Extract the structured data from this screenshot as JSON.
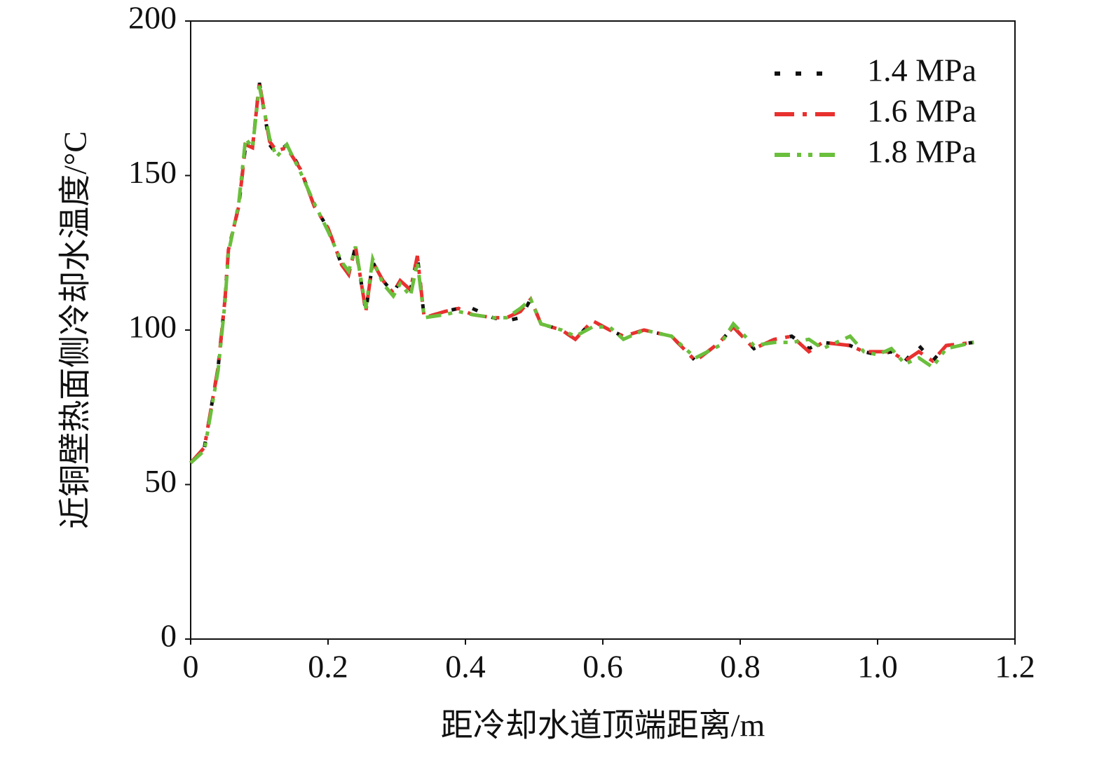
{
  "chart_data": {
    "type": "line",
    "xlabel": "距冷却水道顶端距离/m",
    "ylabel": "近铜壁热面侧冷却水温度/°C",
    "x": [
      0,
      0.02,
      0.04,
      0.05,
      0.055,
      0.07,
      0.08,
      0.09,
      0.1,
      0.115,
      0.125,
      0.14,
      0.16,
      0.18,
      0.2,
      0.22,
      0.23,
      0.24,
      0.255,
      0.265,
      0.28,
      0.295,
      0.305,
      0.32,
      0.33,
      0.34,
      0.37,
      0.39,
      0.41,
      0.44,
      0.46,
      0.48,
      0.495,
      0.51,
      0.54,
      0.56,
      0.585,
      0.61,
      0.63,
      0.66,
      0.7,
      0.735,
      0.77,
      0.79,
      0.82,
      0.85,
      0.875,
      0.9,
      0.92,
      0.96,
      0.98,
      1.0,
      1.02,
      1.04,
      1.06,
      1.08,
      1.1,
      1.14
    ],
    "series": [
      {
        "name": "1.4 MPa",
        "color": "#111111",
        "values": [
          57,
          62,
          88,
          110,
          126,
          140,
          160,
          159,
          180,
          160,
          157,
          160,
          152,
          140,
          133,
          121,
          118,
          127,
          106,
          122,
          116,
          112,
          116,
          113,
          124,
          104,
          106,
          107,
          107,
          104,
          103,
          104,
          110,
          102,
          100,
          97,
          103,
          100,
          98,
          100,
          98,
          90,
          96,
          101,
          94,
          97,
          98,
          94,
          96,
          95,
          93,
          92,
          93,
          90,
          95,
          90,
          95,
          96
        ]
      },
      {
        "name": "1.6 MPa",
        "color": "#e8312f",
        "values": [
          57,
          62,
          88,
          110,
          126,
          140,
          160,
          159,
          180,
          161,
          158,
          159,
          152,
          140,
          133,
          121,
          118,
          127,
          106,
          122,
          116,
          112,
          116,
          113,
          124,
          104,
          106,
          107,
          105,
          104,
          104,
          106,
          110,
          102,
          100,
          97,
          103,
          100,
          98,
          100,
          98,
          90,
          96,
          101,
          94,
          97,
          98,
          93,
          96,
          95,
          93,
          93,
          93,
          90,
          93,
          90,
          95,
          96
        ]
      },
      {
        "name": "1.8 MPa",
        "color": "#6abf3c",
        "values": [
          57,
          61,
          87,
          109,
          125,
          141,
          162,
          159,
          179,
          162,
          156,
          160,
          151,
          141,
          132,
          122,
          119,
          127,
          107,
          123,
          115,
          111,
          115,
          111,
          122,
          104,
          105,
          106,
          105,
          104,
          104,
          107,
          110,
          102,
          100,
          98,
          101,
          101,
          97,
          100,
          98,
          91,
          95,
          102,
          95,
          96,
          96,
          97,
          94,
          98,
          93,
          92,
          94,
          89,
          91,
          88,
          94,
          96
        ]
      }
    ],
    "xlim": [
      0,
      1.2
    ],
    "xticks": [
      0,
      0.2,
      0.4,
      0.6,
      0.8,
      {
        "value": 1,
        "label": "1.0"
      },
      1.2
    ],
    "ylim": [
      0,
      200
    ],
    "yticks": [
      0,
      50,
      100,
      150,
      200
    ],
    "legend": "upper right"
  }
}
